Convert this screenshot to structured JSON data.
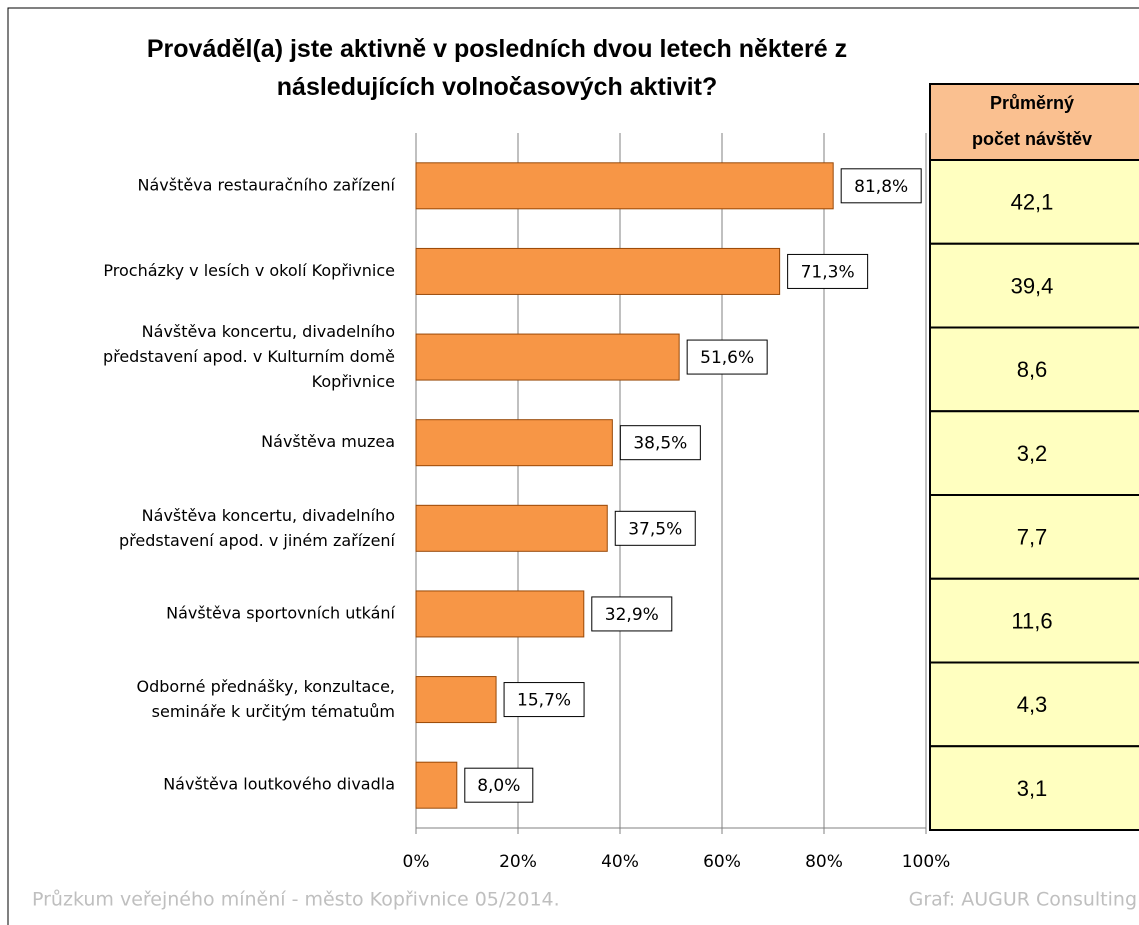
{
  "chart_data": {
    "type": "bar",
    "orientation": "horizontal",
    "title": "Prováděl(a)  jste aktivně  v posledních  dvou letech  některé  z\nnásledujících  volnočasových  aktivit?",
    "categories": [
      "Návštěva restauračního zařízení",
      "Procházky v lesích v okolí Kopřivnice",
      "Návštěva koncertu, divadelního\npředstavení apod. v Kulturním domě\nKopřivnice",
      "Návštěva muzea",
      "Návštěva koncertu, divadelního\npředstavení apod. v jiném zařízení",
      "Návštěva sportovních utkání",
      "Odborné přednášky, konzultace,\nsemináře k určitým tématuům",
      "Návštěva loutkového divadla"
    ],
    "values": [
      81.8,
      71.3,
      51.6,
      38.5,
      37.5,
      32.9,
      15.7,
      8.0
    ],
    "value_labels": [
      "81,8%",
      "71,3%",
      "51,6%",
      "38,5%",
      "37,5%",
      "32,9%",
      "15,7%",
      "8,0%"
    ],
    "color": "#f79646",
    "xlim": [
      0,
      100
    ],
    "xticks": [
      {
        "value": 0,
        "label": "0%"
      },
      {
        "value": 20,
        "label": "20%"
      },
      {
        "value": 40,
        "label": "40%"
      },
      {
        "value": 60,
        "label": "60%"
      },
      {
        "value": 80,
        "label": "80%"
      },
      {
        "value": 100,
        "label": "100%"
      }
    ],
    "grid": true
  },
  "table": {
    "header": "Průměrný\npočet návštěv",
    "rows": [
      "42,1",
      "39,4",
      "8,6",
      "3,2",
      "7,7",
      "11,6",
      "4,3",
      "3,1"
    ]
  },
  "footer": {
    "source": "Průzkum veřejného mínění - město Kopřivnice  05/2014.",
    "credit": "Graf: AUGUR Consulting"
  }
}
